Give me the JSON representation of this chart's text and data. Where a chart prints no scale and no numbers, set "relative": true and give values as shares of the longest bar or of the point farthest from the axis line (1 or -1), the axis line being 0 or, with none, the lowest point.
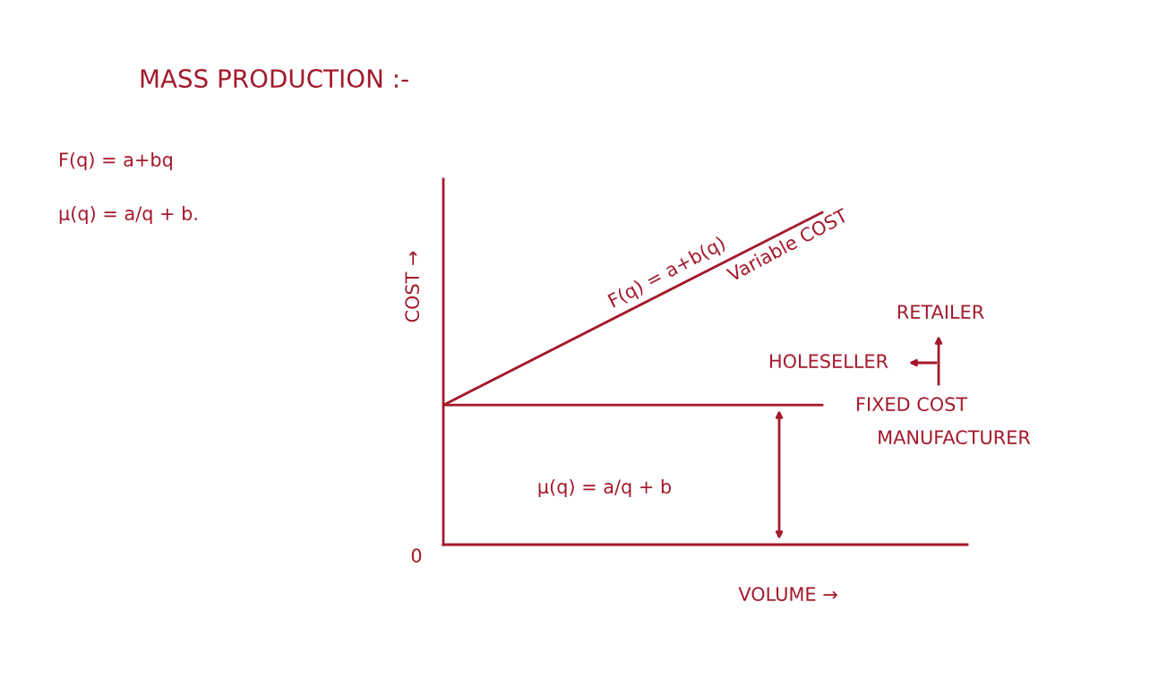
{
  "chart_data": {
    "type": "line",
    "title": "MASS PRODUCTION :-",
    "xlabel": "VOLUME →",
    "ylabel": "COST →",
    "relative": true,
    "categories": [
      null,
      null
    ],
    "series": [
      {
        "name": "FIXED COST",
        "color": "#a3192b",
        "values": [
          0.42,
          0.42
        ]
      },
      {
        "name": "Variable COST",
        "color": "#a3192b",
        "values": [
          0.42,
          1.0
        ]
      }
    ],
    "annotations": [
      "F(q) = a+bq",
      "μ(q) = a/q + b.",
      "F(q) = a+b(q)",
      "RETAILER",
      "HOLESELLER",
      "MANUFACTURER",
      "μ(q) = a/q + b",
      "0"
    ],
    "marker": "none",
    "line_style": "solid",
    "grid": false,
    "legend": false
  }
}
